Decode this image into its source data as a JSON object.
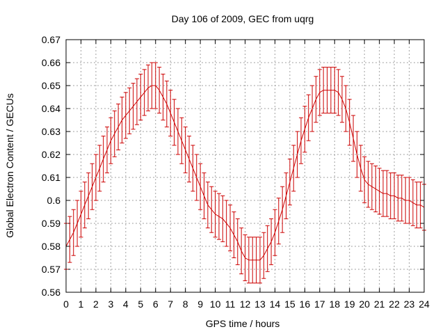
{
  "chart_data": {
    "type": "line",
    "title": "Day 106 of 2009, GEC from uqrg",
    "xlabel": "GPS time / hours",
    "ylabel": "Global Electron Content / GECUs",
    "xlim": [
      0,
      24
    ],
    "ylim": [
      0.56,
      0.67
    ],
    "x_ticks": [
      "0",
      "1",
      "2",
      "3",
      "4",
      "5",
      "6",
      "7",
      "8",
      "9",
      "10",
      "11",
      "12",
      "13",
      "14",
      "15",
      "16",
      "17",
      "18",
      "19",
      "20",
      "21",
      "22",
      "23",
      "24"
    ],
    "y_ticks": [
      "0.56",
      "0.57",
      "0.58",
      "0.59",
      "0.6",
      "0.61",
      "0.62",
      "0.63",
      "0.64",
      "0.65",
      "0.66",
      "0.67"
    ],
    "grid": true,
    "error_bar_halfwidth": 0.01,
    "series_color": "#cc0000",
    "series": [
      {
        "x": [
          0.0,
          0.25,
          0.5,
          0.75,
          1.0,
          1.25,
          1.5,
          1.75,
          2.0,
          2.25,
          2.5,
          2.75,
          3.0,
          3.25,
          3.5,
          3.75,
          4.0,
          4.25,
          4.5,
          4.75,
          5.0,
          5.25,
          5.5,
          5.75,
          6.0,
          6.25,
          6.5,
          6.75,
          7.0,
          7.25,
          7.5,
          7.75,
          8.0,
          8.25,
          8.5,
          8.75,
          9.0,
          9.25,
          9.5,
          9.75,
          10.0,
          10.25,
          10.5,
          10.75,
          11.0,
          11.25,
          11.5,
          11.75,
          12.0,
          12.25,
          12.5,
          12.75,
          13.0,
          13.25,
          13.5,
          13.75,
          14.0,
          14.25,
          14.5,
          14.75,
          15.0,
          15.25,
          15.5,
          15.75,
          16.0,
          16.25,
          16.5,
          16.75,
          17.0,
          17.25,
          17.5,
          17.75,
          18.0,
          18.25,
          18.5,
          18.75,
          19.0,
          19.25,
          19.5,
          19.75,
          20.0,
          20.25,
          20.5,
          20.75,
          21.0,
          21.25,
          21.5,
          21.75,
          22.0,
          22.25,
          22.5,
          22.75,
          23.0,
          23.25,
          23.5,
          23.75,
          24.0
        ],
        "values": [
          0.58,
          0.583,
          0.586,
          0.59,
          0.594,
          0.598,
          0.602,
          0.606,
          0.61,
          0.614,
          0.618,
          0.622,
          0.626,
          0.629,
          0.632,
          0.635,
          0.637,
          0.639,
          0.641,
          0.643,
          0.645,
          0.647,
          0.649,
          0.65,
          0.65,
          0.648,
          0.645,
          0.642,
          0.638,
          0.634,
          0.63,
          0.626,
          0.622,
          0.618,
          0.614,
          0.61,
          0.606,
          0.602,
          0.598,
          0.596,
          0.594,
          0.593,
          0.592,
          0.59,
          0.588,
          0.585,
          0.582,
          0.578,
          0.575,
          0.574,
          0.574,
          0.574,
          0.574,
          0.576,
          0.579,
          0.582,
          0.586,
          0.591,
          0.596,
          0.602,
          0.608,
          0.614,
          0.62,
          0.626,
          0.631,
          0.636,
          0.64,
          0.644,
          0.647,
          0.648,
          0.648,
          0.648,
          0.648,
          0.647,
          0.644,
          0.64,
          0.634,
          0.627,
          0.62,
          0.614,
          0.609,
          0.607,
          0.606,
          0.605,
          0.604,
          0.603,
          0.603,
          0.602,
          0.602,
          0.601,
          0.601,
          0.6,
          0.6,
          0.599,
          0.598,
          0.598,
          0.597
        ]
      }
    ]
  }
}
